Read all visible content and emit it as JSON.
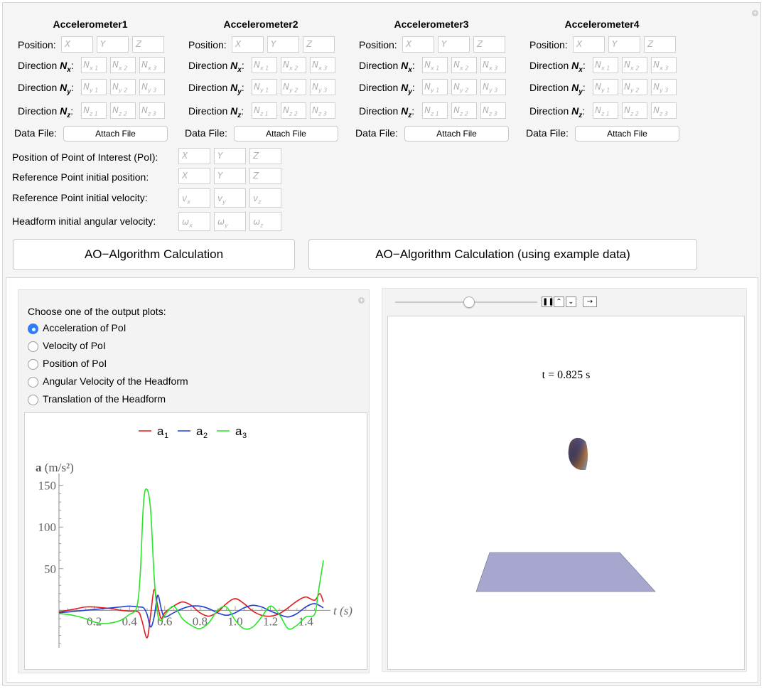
{
  "accelerometers": [
    {
      "title": "Accelerometer1"
    },
    {
      "title": "Accelerometer2"
    },
    {
      "title": "Accelerometer3"
    },
    {
      "title": "Accelerometer4"
    }
  ],
  "labels": {
    "position": "Position:",
    "direction_nx": "Direction N",
    "direction_ny": "Direction N",
    "direction_nz": "Direction N",
    "nx_sub": "x",
    "ny_sub": "y",
    "nz_sub": "z",
    "colon": ":",
    "data_file": "Data File:",
    "attach_file": "Attach File"
  },
  "placeholders": {
    "x": "X",
    "y": "Y",
    "z": "Z",
    "nx": [
      "N",
      "x 1",
      "N",
      "x 2",
      "N",
      "x 3"
    ],
    "ny": [
      "N",
      "y 1",
      "N",
      "y 2",
      "N",
      "y 3"
    ],
    "nz": [
      "N",
      "z 1",
      "N",
      "z 2",
      "N",
      "z 3"
    ]
  },
  "extra_rows": [
    {
      "label": "Position of Point of Interest (PoI):",
      "fields": [
        [
          "X",
          ""
        ],
        [
          "Y",
          ""
        ],
        [
          "Z",
          ""
        ]
      ]
    },
    {
      "label": "Reference Point initial position:",
      "fields": [
        [
          "X",
          ""
        ],
        [
          "Y",
          ""
        ],
        [
          "Z",
          ""
        ]
      ]
    },
    {
      "label": "Reference Point initial velocity:",
      "fields": [
        [
          "v",
          "x"
        ],
        [
          "v",
          "y"
        ],
        [
          "v",
          "z"
        ]
      ]
    },
    {
      "label": "Headform initial angular velocity:",
      "fields": [
        [
          "ω",
          "x"
        ],
        [
          "ω",
          "y"
        ],
        [
          "ω",
          "z"
        ]
      ]
    }
  ],
  "buttons": {
    "calc": "AO−Algorithm Calculation",
    "calc_example": "AO−Algorithm Calculation (using example data)"
  },
  "output": {
    "choose_label": "Choose one of the output plots:",
    "options": [
      "Acceleration of PoI",
      "Velocity of PoI",
      "Position of PoI",
      "Angular Velocity of the Headform",
      "Translation of the Headform"
    ],
    "selected_index": 0
  },
  "animation": {
    "time_text": "t = 0.825 s",
    "slider_fraction": 0.52,
    "controls": [
      "pause-icon",
      "faster-icon",
      "slower-icon",
      "direction-icon"
    ]
  },
  "chart_data": {
    "type": "line",
    "ylabel_bold": "a",
    "ylabel_unit": "(m/s²)",
    "xlabel": "t (s)",
    "xticks": [
      0.2,
      0.4,
      0.6,
      0.8,
      1.0,
      1.2,
      1.4
    ],
    "xtick_labels": [
      "0.2",
      "0.4",
      "0.6",
      "0.8",
      "1.0",
      "1.2",
      "1.4"
    ],
    "yticks": [
      50,
      100,
      150
    ],
    "ytick_labels": [
      "50",
      "100",
      "150"
    ],
    "xlim": [
      0,
      1.5
    ],
    "ylim": [
      -45,
      160
    ],
    "legend_position": "top",
    "legend": [
      {
        "name": "a",
        "sub": "1",
        "color": "#e41a1c"
      },
      {
        "name": "a",
        "sub": "2",
        "color": "#1f3fd6"
      },
      {
        "name": "a",
        "sub": "3",
        "color": "#27e627"
      }
    ],
    "series": [
      {
        "name": "a1",
        "color": "#e41a1c",
        "x": [
          0.0,
          0.05,
          0.1,
          0.15,
          0.2,
          0.25,
          0.3,
          0.35,
          0.4,
          0.45,
          0.47,
          0.5,
          0.52,
          0.54,
          0.56,
          0.58,
          0.6,
          0.65,
          0.7,
          0.75,
          0.8,
          0.85,
          0.9,
          0.95,
          1.0,
          1.05,
          1.1,
          1.15,
          1.2,
          1.25,
          1.3,
          1.35,
          1.4,
          1.45,
          1.48,
          1.5
        ],
        "y": [
          -2,
          0,
          2,
          4,
          4,
          3,
          2,
          0,
          -1,
          -2,
          -12,
          -33,
          -5,
          25,
          5,
          -10,
          -3,
          5,
          10,
          6,
          -3,
          -7,
          -2,
          8,
          14,
          8,
          -1,
          -6,
          -7,
          -4,
          3,
          11,
          16,
          12,
          20,
          10
        ]
      },
      {
        "name": "a2",
        "color": "#1f3fd6",
        "x": [
          0.0,
          0.05,
          0.1,
          0.15,
          0.2,
          0.25,
          0.3,
          0.35,
          0.4,
          0.45,
          0.48,
          0.5,
          0.52,
          0.54,
          0.56,
          0.58,
          0.6,
          0.65,
          0.7,
          0.75,
          0.8,
          0.85,
          0.9,
          0.95,
          1.0,
          1.05,
          1.1,
          1.15,
          1.2,
          1.25,
          1.3,
          1.35,
          1.4,
          1.45,
          1.5
        ],
        "y": [
          -3,
          -2,
          -1,
          0,
          1,
          2,
          3,
          4,
          5,
          4,
          3,
          -5,
          -20,
          -8,
          18,
          2,
          -8,
          -3,
          2,
          5,
          5,
          2,
          -3,
          -6,
          -3,
          3,
          6,
          4,
          -1,
          -5,
          -8,
          -4,
          4,
          8,
          3
        ]
      },
      {
        "name": "a3",
        "color": "#27e627",
        "x": [
          0.0,
          0.05,
          0.1,
          0.15,
          0.2,
          0.25,
          0.3,
          0.35,
          0.4,
          0.44,
          0.46,
          0.48,
          0.5,
          0.52,
          0.54,
          0.56,
          0.58,
          0.6,
          0.65,
          0.7,
          0.75,
          0.8,
          0.85,
          0.9,
          0.95,
          1.0,
          1.05,
          1.1,
          1.15,
          1.2,
          1.25,
          1.3,
          1.35,
          1.4,
          1.45,
          1.47,
          1.5
        ],
        "y": [
          -4,
          -5,
          -7,
          -10,
          -14,
          -16,
          -15,
          -12,
          -5,
          3,
          40,
          130,
          145,
          120,
          40,
          -5,
          -12,
          -6,
          5,
          -10,
          -18,
          -22,
          -15,
          0,
          4,
          -12,
          -22,
          -20,
          -8,
          5,
          -5,
          -22,
          -18,
          -8,
          -5,
          20,
          60
        ]
      }
    ]
  }
}
